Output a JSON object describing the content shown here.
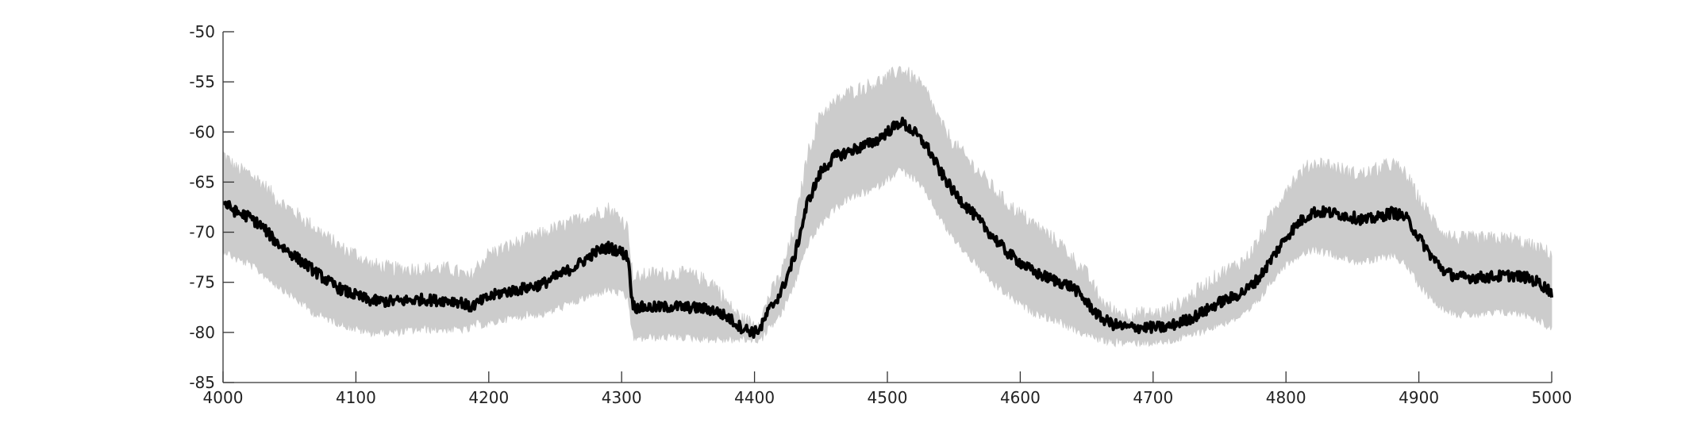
{
  "chart_data": {
    "type": "line",
    "title": "",
    "xlabel": "",
    "ylabel": "",
    "xlim": [
      4000,
      5000
    ],
    "ylim": [
      -85,
      -50
    ],
    "x_ticks": [
      4000,
      4100,
      4200,
      4300,
      4400,
      4500,
      4600,
      4700,
      4800,
      4900,
      5000
    ],
    "x_tick_labels": [
      "4000",
      "4100",
      "4200",
      "4300",
      "4400",
      "4500",
      "4600",
      "4700",
      "4800",
      "4900",
      "5000"
    ],
    "y_ticks": [
      -50,
      -55,
      -60,
      -65,
      -70,
      -75,
      -80,
      -85
    ],
    "y_tick_labels": [
      "-50",
      "-55",
      "-60",
      "-65",
      "-70",
      "-75",
      "-80",
      "-85"
    ],
    "grid": false,
    "legend": "none",
    "series": [
      {
        "role": "mean",
        "color": "#000000",
        "x": [
          4000,
          4010,
          4020,
          4030,
          4040,
          4050,
          4060,
          4070,
          4080,
          4090,
          4100,
          4110,
          4120,
          4130,
          4140,
          4150,
          4160,
          4170,
          4180,
          4185,
          4190,
          4200,
          4210,
          4220,
          4230,
          4240,
          4250,
          4260,
          4270,
          4280,
          4290,
          4300,
          4305,
          4308,
          4310,
          4320,
          4330,
          4340,
          4350,
          4360,
          4370,
          4380,
          4390,
          4400,
          4405,
          4410,
          4420,
          4430,
          4440,
          4450,
          4460,
          4470,
          4480,
          4490,
          4500,
          4510,
          4520,
          4530,
          4540,
          4550,
          4560,
          4570,
          4580,
          4590,
          4600,
          4610,
          4620,
          4630,
          4640,
          4650,
          4660,
          4670,
          4680,
          4690,
          4700,
          4710,
          4720,
          4730,
          4740,
          4750,
          4760,
          4770,
          4780,
          4790,
          4800,
          4810,
          4820,
          4830,
          4840,
          4850,
          4860,
          4870,
          4880,
          4890,
          4900,
          4910,
          4920,
          4930,
          4940,
          4950,
          4960,
          4970,
          4980,
          4990,
          5000
        ],
        "y": [
          -67,
          -68,
          -68.5,
          -69.5,
          -71,
          -72,
          -73,
          -74,
          -75,
          -75.8,
          -76.3,
          -76.8,
          -76.9,
          -76.9,
          -76.8,
          -76.7,
          -76.8,
          -76.8,
          -77,
          -77.5,
          -77.2,
          -76.5,
          -76,
          -75.8,
          -75.5,
          -75.2,
          -74.5,
          -73.8,
          -73,
          -72,
          -71.5,
          -72,
          -72.5,
          -77,
          -77.5,
          -77.5,
          -77.5,
          -77.4,
          -77.5,
          -77.6,
          -77.8,
          -78.5,
          -79.5,
          -80,
          -79.5,
          -78,
          -76,
          -72.5,
          -67,
          -64,
          -62.5,
          -62,
          -61.5,
          -61,
          -60,
          -59,
          -60,
          -61.5,
          -64,
          -66,
          -67.5,
          -69,
          -70.5,
          -72,
          -73,
          -74,
          -74.5,
          -75,
          -75.5,
          -77,
          -78.5,
          -79.2,
          -79.5,
          -79.5,
          -79.5,
          -79.5,
          -79,
          -78.5,
          -77.8,
          -77,
          -76.5,
          -75.8,
          -74.5,
          -72.5,
          -70.5,
          -69,
          -68,
          -68,
          -68.2,
          -68.5,
          -68.8,
          -68.5,
          -68,
          -68.5,
          -70.5,
          -72.5,
          -74,
          -74.5,
          -74.5,
          -74.5,
          -74.4,
          -74.3,
          -74.5,
          -75,
          -76
        ]
      },
      {
        "role": "band",
        "color": "#cccccc",
        "x": [
          4000,
          4010,
          4020,
          4030,
          4040,
          4050,
          4060,
          4070,
          4080,
          4090,
          4100,
          4110,
          4120,
          4130,
          4140,
          4150,
          4160,
          4170,
          4180,
          4185,
          4190,
          4200,
          4210,
          4220,
          4230,
          4240,
          4250,
          4260,
          4270,
          4280,
          4290,
          4300,
          4305,
          4308,
          4310,
          4320,
          4330,
          4340,
          4350,
          4360,
          4370,
          4380,
          4390,
          4400,
          4405,
          4410,
          4420,
          4430,
          4440,
          4450,
          4460,
          4470,
          4480,
          4490,
          4500,
          4510,
          4520,
          4530,
          4540,
          4550,
          4560,
          4570,
          4580,
          4590,
          4600,
          4610,
          4620,
          4630,
          4640,
          4650,
          4660,
          4670,
          4680,
          4690,
          4700,
          4710,
          4720,
          4730,
          4740,
          4750,
          4760,
          4770,
          4780,
          4790,
          4800,
          4810,
          4820,
          4830,
          4840,
          4850,
          4860,
          4870,
          4880,
          4890,
          4900,
          4910,
          4920,
          4930,
          4940,
          4950,
          4960,
          4970,
          4980,
          4990,
          5000
        ],
        "upper": [
          -62.5,
          -64,
          -64.5,
          -65.5,
          -67,
          -68,
          -69,
          -70,
          -71,
          -72,
          -72.5,
          -73.5,
          -73.8,
          -74,
          -74,
          -74,
          -74,
          -74,
          -74.5,
          -75,
          -74,
          -72.5,
          -72,
          -71.5,
          -71,
          -70.5,
          -70,
          -69.5,
          -69,
          -68.5,
          -68,
          -69,
          -70,
          -74.5,
          -75,
          -74.5,
          -74.5,
          -74.5,
          -74.5,
          -75,
          -75.5,
          -77.5,
          -79,
          -79.5,
          -79,
          -77,
          -74.5,
          -70,
          -62.5,
          -58.5,
          -57.5,
          -56.5,
          -56,
          -55.5,
          -55,
          -54,
          -55,
          -56.5,
          -59.5,
          -61.5,
          -63,
          -64.5,
          -66,
          -67.5,
          -68.5,
          -69.5,
          -70.5,
          -71.5,
          -73,
          -74.5,
          -77,
          -78.2,
          -78.5,
          -78.5,
          -78.5,
          -78.2,
          -77.5,
          -76.5,
          -75.5,
          -74.5,
          -73.8,
          -73,
          -71,
          -68.5,
          -66,
          -64.5,
          -63.5,
          -63.5,
          -64,
          -64.5,
          -64.5,
          -64,
          -63.5,
          -64.5,
          -67,
          -69,
          -70.5,
          -71,
          -71,
          -71,
          -71,
          -71,
          -71.5,
          -72,
          -72.5
        ],
        "lower": [
          -71.5,
          -72.5,
          -73,
          -74,
          -75,
          -76,
          -77,
          -78,
          -78.5,
          -79,
          -79.5,
          -79.8,
          -79.8,
          -79.8,
          -79.6,
          -79.5,
          -79.5,
          -79.5,
          -79.5,
          -79.5,
          -79,
          -79,
          -78.5,
          -78.3,
          -78,
          -78,
          -77.5,
          -77,
          -76.5,
          -76,
          -75.5,
          -76,
          -76.5,
          -80,
          -80.5,
          -80.3,
          -80.3,
          -80.2,
          -80.3,
          -80.4,
          -80.5,
          -80.5,
          -80.5,
          -80.5,
          -80.5,
          -79.5,
          -78,
          -75,
          -71,
          -69,
          -67.5,
          -66.5,
          -66,
          -65.5,
          -64.5,
          -63.5,
          -64.5,
          -66,
          -68.5,
          -70.5,
          -72,
          -73.5,
          -75,
          -76,
          -77,
          -77.8,
          -78.3,
          -78.8,
          -79.5,
          -80,
          -80.5,
          -80.8,
          -80.8,
          -80.8,
          -80.8,
          -80.7,
          -80.4,
          -80,
          -79.5,
          -79,
          -78.5,
          -78,
          -76.5,
          -74.5,
          -73,
          -72,
          -71.5,
          -71.8,
          -72.2,
          -72.6,
          -72.8,
          -72.5,
          -72,
          -73,
          -75,
          -76.5,
          -77.5,
          -78,
          -78,
          -78,
          -77.8,
          -77.8,
          -78,
          -78.5,
          -79.5
        ]
      }
    ]
  }
}
